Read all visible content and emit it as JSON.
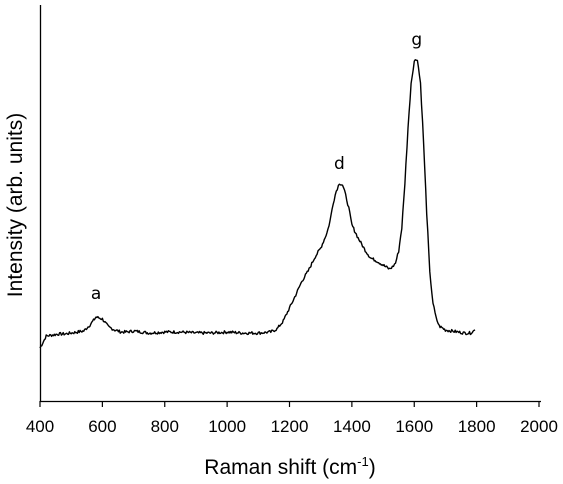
{
  "chart_data": {
    "type": "line",
    "title": "",
    "xlabel": "Raman shift (cm",
    "xlabel_sup": "-1",
    "xlabel_close": ")",
    "ylabel": "Intensity (arb. units)",
    "xlim": [
      400,
      2000
    ],
    "x_ticks": [
      "400",
      "600",
      "800",
      "1000",
      "1200",
      "1400",
      "1600",
      "1800",
      "2000"
    ],
    "y_ticks_labeled": false,
    "grid": false,
    "line_color": "#000000",
    "annotations": [
      {
        "text": "a",
        "x": 580,
        "y": 22
      },
      {
        "text": "d",
        "x": 1360,
        "y": 152
      },
      {
        "text": "g",
        "x": 1608,
        "y": 276
      }
    ],
    "series": [
      {
        "x": [
          400,
          420,
          440,
          460,
          480,
          500,
          520,
          540,
          560,
          580,
          600,
          620,
          640,
          660,
          680,
          700,
          750,
          800,
          850,
          900,
          950,
          1000,
          1050,
          1100,
          1140,
          1160,
          1180,
          1200,
          1220,
          1240,
          1260,
          1280,
          1300,
          1320,
          1330,
          1340,
          1350,
          1360,
          1370,
          1380,
          1390,
          1400,
          1420,
          1440,
          1460,
          1480,
          1500,
          1520,
          1530,
          1540,
          1550,
          1560,
          1570,
          1580,
          1590,
          1600,
          1610,
          1620,
          1630,
          1640,
          1650,
          1660,
          1670,
          1680,
          1700,
          1720,
          1740,
          1760,
          1780,
          1795
        ],
        "y": [
          -15,
          -3,
          -2,
          -1,
          -1,
          0,
          1,
          2,
          8,
          16,
          14,
          6,
          3,
          1,
          1,
          2,
          0,
          1,
          1,
          0,
          0,
          1,
          0,
          0,
          1,
          4,
          12,
          25,
          38,
          52,
          62,
          75,
          85,
          100,
          112,
          130,
          142,
          150,
          148,
          138,
          125,
          108,
          95,
          84,
          75,
          72,
          68,
          64,
          66,
          70,
          82,
          105,
          150,
          205,
          250,
          272,
          274,
          250,
          190,
          120,
          60,
          30,
          15,
          7,
          3,
          2,
          1,
          0,
          0,
          3
        ]
      }
    ]
  }
}
